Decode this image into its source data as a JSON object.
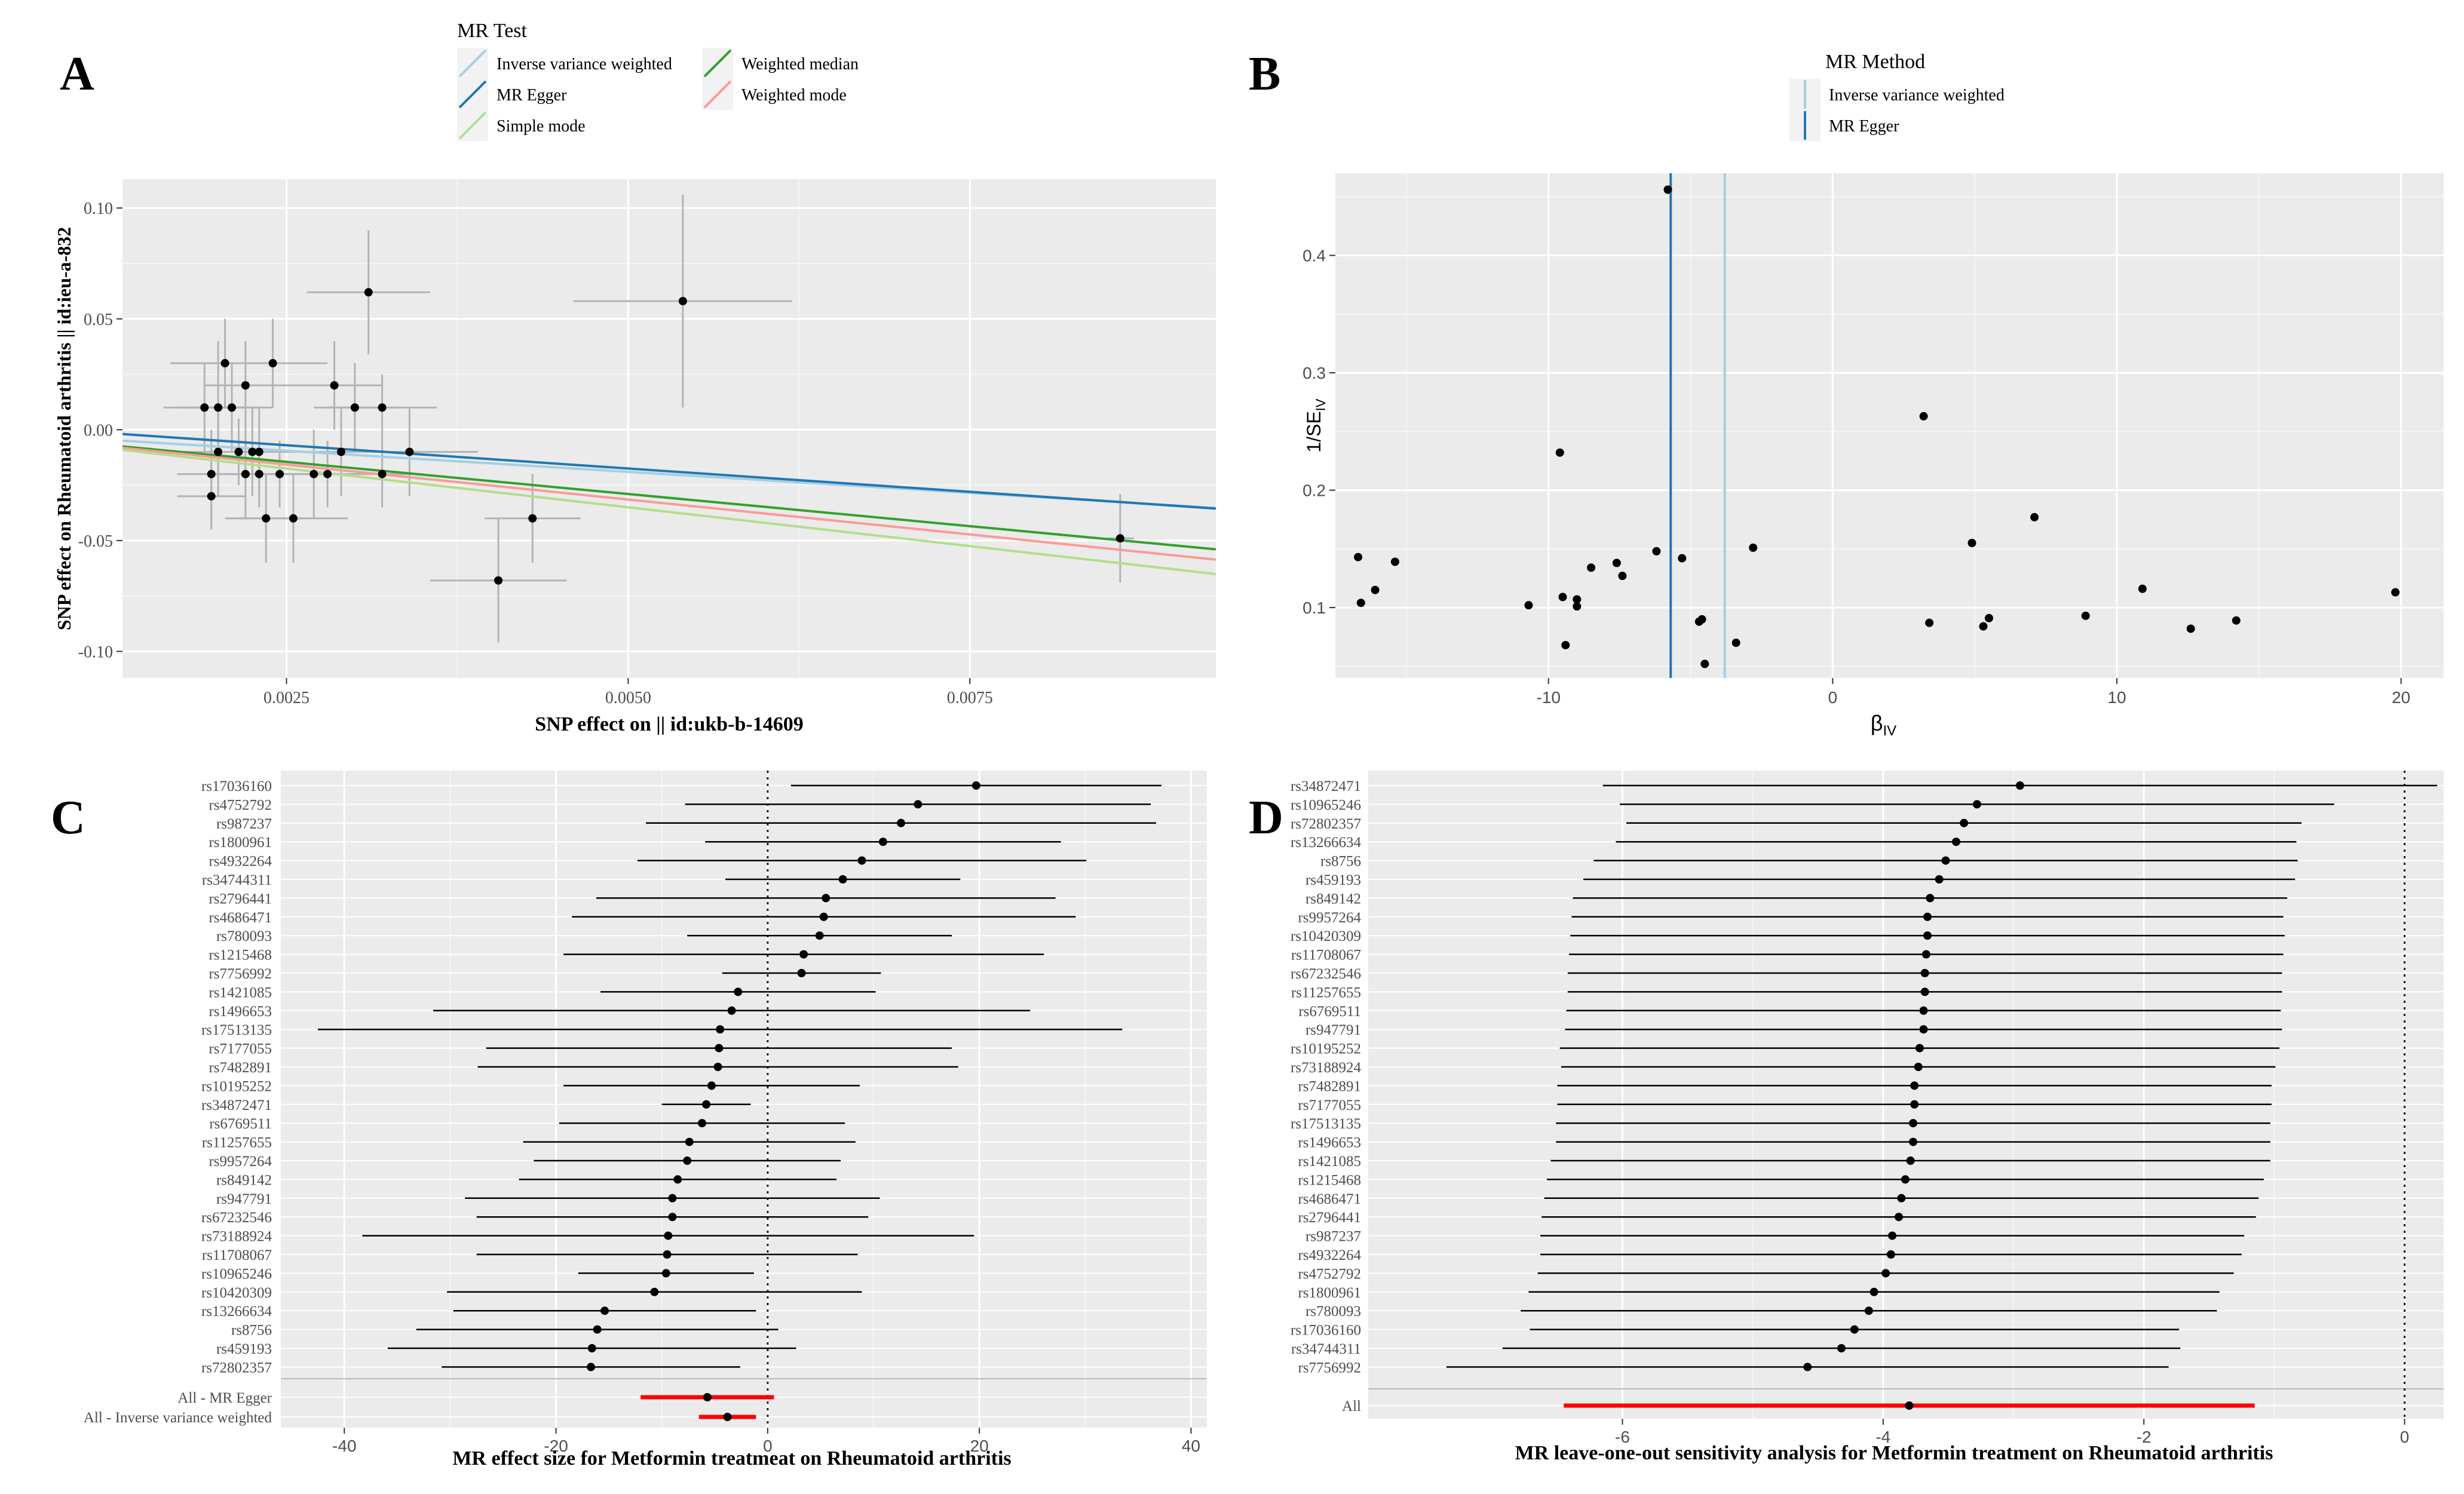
{
  "panel_letters": {
    "a": "A",
    "b": "B",
    "c": "C",
    "d": "D"
  },
  "chart_data": [
    {
      "panel": "A",
      "type": "scatter",
      "xlabel": "SNP effect on  || id:ukb-b-14609",
      "ylabel": "SNP effect on Rheumatoid arthritis || id:ieu-a-832",
      "xlim": [
        0.0013,
        0.0093
      ],
      "ylim": [
        -0.112,
        0.113
      ],
      "x_ticks": [
        0.0025,
        0.005,
        0.0075
      ],
      "x_tick_labels": [
        "0.0025",
        "0.0050",
        "0.0075"
      ],
      "y_ticks": [
        -0.1,
        -0.05,
        0.0,
        0.05,
        0.1
      ],
      "y_tick_labels": [
        "-0.10",
        "-0.05",
        "0.00",
        "0.05",
        "0.10"
      ],
      "grid": true,
      "legend": {
        "title": "MR Test",
        "placement": "top",
        "entries": [
          {
            "name": "Inverse variance weighted",
            "color": "#a6cee3"
          },
          {
            "name": "Weighted median",
            "color": "#33a02c"
          },
          {
            "name": "MR Egger",
            "color": "#1f78b4"
          },
          {
            "name": "Weighted mode",
            "color": "#fb9a99"
          },
          {
            "name": "Simple mode",
            "color": "#b2df8a"
          }
        ]
      },
      "lines": [
        {
          "name": "Inverse variance weighted",
          "color": "#a6cee3",
          "intercept": 0.0,
          "slope": -3.8
        },
        {
          "name": "MR Egger",
          "color": "#1f78b4",
          "intercept": 0.0035,
          "slope": -4.2
        },
        {
          "name": "Weighted median",
          "color": "#33a02c",
          "intercept": 0.0,
          "slope": -5.8
        },
        {
          "name": "Weighted mode",
          "color": "#fb9a99",
          "intercept": 0.0,
          "slope": -6.3
        },
        {
          "name": "Simple mode",
          "color": "#b2df8a",
          "intercept": 0.0,
          "slope": -7.0
        }
      ],
      "points": [
        {
          "x": 0.0019,
          "y": 0.01,
          "xse": 0.0003,
          "yse": 0.02
        },
        {
          "x": 0.00195,
          "y": -0.02,
          "xse": 0.00025,
          "yse": 0.02
        },
        {
          "x": 0.00195,
          "y": -0.03,
          "xse": 0.00025,
          "yse": 0.015
        },
        {
          "x": 0.002,
          "y": -0.01,
          "xse": 0.0003,
          "yse": 0.02
        },
        {
          "x": 0.002,
          "y": 0.01,
          "xse": 0.0003,
          "yse": 0.03
        },
        {
          "x": 0.00205,
          "y": 0.03,
          "xse": 0.0004,
          "yse": 0.02
        },
        {
          "x": 0.0021,
          "y": 0.01,
          "xse": 0.0003,
          "yse": 0.02
        },
        {
          "x": 0.00215,
          "y": -0.01,
          "xse": 0.0003,
          "yse": 0.015
        },
        {
          "x": 0.0022,
          "y": -0.02,
          "xse": 0.0004,
          "yse": 0.02
        },
        {
          "x": 0.0022,
          "y": 0.02,
          "xse": 0.0003,
          "yse": 0.02
        },
        {
          "x": 0.00225,
          "y": -0.01,
          "xse": 0.0003,
          "yse": 0.02
        },
        {
          "x": 0.0023,
          "y": -0.02,
          "xse": 0.0003,
          "yse": 0.015
        },
        {
          "x": 0.0023,
          "y": -0.01,
          "xse": 0.00035,
          "yse": 0.02
        },
        {
          "x": 0.00235,
          "y": -0.04,
          "xse": 0.0003,
          "yse": 0.02
        },
        {
          "x": 0.0024,
          "y": 0.03,
          "xse": 0.0004,
          "yse": 0.02
        },
        {
          "x": 0.00245,
          "y": -0.02,
          "xse": 0.0003,
          "yse": 0.015
        },
        {
          "x": 0.00255,
          "y": -0.04,
          "xse": 0.0004,
          "yse": 0.02
        },
        {
          "x": 0.0027,
          "y": -0.02,
          "xse": 0.0003,
          "yse": 0.02
        },
        {
          "x": 0.0028,
          "y": -0.02,
          "xse": 0.0003,
          "yse": 0.015
        },
        {
          "x": 0.00285,
          "y": 0.02,
          "xse": 0.00035,
          "yse": 0.02
        },
        {
          "x": 0.0029,
          "y": -0.01,
          "xse": 0.00035,
          "yse": 0.02
        },
        {
          "x": 0.003,
          "y": 0.01,
          "xse": 0.0003,
          "yse": 0.02
        },
        {
          "x": 0.0031,
          "y": 0.062,
          "xse": 0.00045,
          "yse": 0.028
        },
        {
          "x": 0.0032,
          "y": 0.01,
          "xse": 0.0004,
          "yse": 0.015
        },
        {
          "x": 0.0032,
          "y": -0.02,
          "xse": 0.0003,
          "yse": 0.015
        },
        {
          "x": 0.0034,
          "y": -0.01,
          "xse": 0.0005,
          "yse": 0.02
        },
        {
          "x": 0.00405,
          "y": -0.068,
          "xse": 0.0005,
          "yse": 0.028
        },
        {
          "x": 0.0043,
          "y": -0.04,
          "xse": 0.00035,
          "yse": 0.02
        },
        {
          "x": 0.0054,
          "y": 0.058,
          "xse": 0.0008,
          "yse": 0.048
        },
        {
          "x": 0.0086,
          "y": -0.049,
          "xse": 0.0001,
          "yse": 0.02
        }
      ]
    },
    {
      "panel": "B",
      "type": "scatter",
      "xlabel": "βIV",
      "ylabel": "1/SEIV",
      "xlabel_main": "β",
      "xlabel_sub": "IV",
      "ylabel_main": "1/SE",
      "ylabel_sub": "IV",
      "xlim": [
        -17.5,
        21.5
      ],
      "ylim": [
        0.04,
        0.47
      ],
      "x_ticks": [
        -10,
        0,
        10,
        20
      ],
      "x_tick_labels": [
        "-10",
        "0",
        "10",
        "20"
      ],
      "y_ticks": [
        0.1,
        0.2,
        0.3,
        0.4
      ],
      "y_tick_labels": [
        "0.1",
        "0.2",
        "0.3",
        "0.4"
      ],
      "grid": true,
      "legend": {
        "title": "MR Method",
        "placement": "top",
        "entries": [
          {
            "name": "Inverse variance weighted",
            "color": "#a6cee3"
          },
          {
            "name": "MR Egger",
            "color": "#1f78b4"
          }
        ]
      },
      "vlines": [
        {
          "name": "MR Egger",
          "color": "#1f78b4",
          "x": -5.7
        },
        {
          "name": "Inverse variance weighted",
          "color": "#a6cee3",
          "x": -3.8
        }
      ],
      "points": [
        {
          "x": -16.7,
          "y": 0.143
        },
        {
          "x": -16.6,
          "y": 0.104
        },
        {
          "x": -16.1,
          "y": 0.115
        },
        {
          "x": -15.4,
          "y": 0.139
        },
        {
          "x": -10.7,
          "y": 0.102
        },
        {
          "x": -9.6,
          "y": 0.232
        },
        {
          "x": -9.5,
          "y": 0.109
        },
        {
          "x": -9.4,
          "y": 0.068
        },
        {
          "x": -9.0,
          "y": 0.101
        },
        {
          "x": -9.0,
          "y": 0.107
        },
        {
          "x": -8.5,
          "y": 0.134
        },
        {
          "x": -7.6,
          "y": 0.138
        },
        {
          "x": -7.4,
          "y": 0.127
        },
        {
          "x": -6.2,
          "y": 0.148
        },
        {
          "x": -5.8,
          "y": 0.456
        },
        {
          "x": -5.3,
          "y": 0.142
        },
        {
          "x": -4.7,
          "y": 0.088
        },
        {
          "x": -4.6,
          "y": 0.09
        },
        {
          "x": -4.5,
          "y": 0.052
        },
        {
          "x": -3.4,
          "y": 0.07
        },
        {
          "x": -2.8,
          "y": 0.151
        },
        {
          "x": 3.2,
          "y": 0.263
        },
        {
          "x": 3.4,
          "y": 0.087
        },
        {
          "x": 4.9,
          "y": 0.155
        },
        {
          "x": 5.3,
          "y": 0.084
        },
        {
          "x": 5.5,
          "y": 0.091
        },
        {
          "x": 7.1,
          "y": 0.177
        },
        {
          "x": 8.9,
          "y": 0.093
        },
        {
          "x": 10.9,
          "y": 0.116
        },
        {
          "x": 12.6,
          "y": 0.082
        },
        {
          "x": 14.2,
          "y": 0.089
        },
        {
          "x": 19.8,
          "y": 0.113
        }
      ]
    },
    {
      "panel": "C",
      "type": "forest",
      "xlabel": "MR effect size for Metformin treatmeat on    Rheumatoid arthritis",
      "xlim": [
        -46,
        41.5
      ],
      "x_ticks": [
        -40,
        -20,
        0,
        20,
        40
      ],
      "x_tick_labels": [
        "-40",
        "-20",
        "0",
        "20",
        "40"
      ],
      "grid": true,
      "refline": 0,
      "rows": [
        {
          "label": "rs17036160",
          "b": 19.7,
          "lo": 2.2,
          "hi": 37.2
        },
        {
          "label": "rs4752792",
          "b": 14.2,
          "lo": -7.8,
          "hi": 36.2
        },
        {
          "label": "rs987237",
          "b": 12.6,
          "lo": -11.5,
          "hi": 36.7
        },
        {
          "label": "rs1800961",
          "b": 10.9,
          "lo": -5.9,
          "hi": 27.7
        },
        {
          "label": "rs4932264",
          "b": 8.9,
          "lo": -12.3,
          "hi": 30.1
        },
        {
          "label": "rs34744311",
          "b": 7.1,
          "lo": -4.0,
          "hi": 18.2
        },
        {
          "label": "rs2796441",
          "b": 5.5,
          "lo": -16.2,
          "hi": 27.2
        },
        {
          "label": "rs4686471",
          "b": 5.3,
          "lo": -18.5,
          "hi": 29.1
        },
        {
          "label": "rs780093",
          "b": 4.9,
          "lo": -7.6,
          "hi": 17.4
        },
        {
          "label": "rs1215468",
          "b": 3.4,
          "lo": -19.3,
          "hi": 26.1
        },
        {
          "label": "rs7756992",
          "b": 3.2,
          "lo": -4.3,
          "hi": 10.7
        },
        {
          "label": "rs1421085",
          "b": -2.8,
          "lo": -15.8,
          "hi": 10.2
        },
        {
          "label": "rs1496653",
          "b": -3.4,
          "lo": -31.6,
          "hi": 24.8
        },
        {
          "label": "rs17513135",
          "b": -4.5,
          "lo": -42.5,
          "hi": 33.5
        },
        {
          "label": "rs7177055",
          "b": -4.6,
          "lo": -26.6,
          "hi": 17.4
        },
        {
          "label": "rs7482891",
          "b": -4.7,
          "lo": -27.4,
          "hi": 18.0
        },
        {
          "label": "rs10195252",
          "b": -5.3,
          "lo": -19.3,
          "hi": 8.7
        },
        {
          "label": "rs34872471",
          "b": -5.8,
          "lo": -10.0,
          "hi": -1.6
        },
        {
          "label": "rs6769511",
          "b": -6.2,
          "lo": -19.7,
          "hi": 7.3
        },
        {
          "label": "rs11257655",
          "b": -7.4,
          "lo": -23.1,
          "hi": 8.3
        },
        {
          "label": "rs9957264",
          "b": -7.6,
          "lo": -22.1,
          "hi": 6.9
        },
        {
          "label": "rs849142",
          "b": -8.5,
          "lo": -23.5,
          "hi": 6.5
        },
        {
          "label": "rs947791",
          "b": -9.0,
          "lo": -28.6,
          "hi": 10.6
        },
        {
          "label": "rs67232546",
          "b": -9.0,
          "lo": -27.5,
          "hi": 9.5
        },
        {
          "label": "rs73188924",
          "b": -9.4,
          "lo": -38.3,
          "hi": 19.5
        },
        {
          "label": "rs11708067",
          "b": -9.5,
          "lo": -27.5,
          "hi": 8.5
        },
        {
          "label": "rs10965246",
          "b": -9.6,
          "lo": -17.9,
          "hi": -1.3
        },
        {
          "label": "rs10420309",
          "b": -10.7,
          "lo": -30.3,
          "hi": 8.9
        },
        {
          "label": "rs13266634",
          "b": -15.4,
          "lo": -29.7,
          "hi": -1.1
        },
        {
          "label": "rs8756",
          "b": -16.1,
          "lo": -33.2,
          "hi": 1.0
        },
        {
          "label": "rs459193",
          "b": -16.6,
          "lo": -35.9,
          "hi": 2.7
        },
        {
          "label": "rs72802357",
          "b": -16.7,
          "lo": -30.8,
          "hi": -2.6
        }
      ],
      "summary_rows": [
        {
          "label": "All - MR Egger",
          "b": -5.7,
          "lo": -12.0,
          "hi": 0.6
        },
        {
          "label": "All - Inverse variance weighted",
          "b": -3.8,
          "lo": -6.5,
          "hi": -1.1
        }
      ]
    },
    {
      "panel": "D",
      "type": "forest",
      "xlabel": "MR leave-one-out sensitivity analysis for Metformin treatment on Rheumatoid arthritis",
      "xlim": [
        -7.95,
        0.3
      ],
      "x_ticks": [
        -6,
        -4,
        -2,
        0
      ],
      "x_tick_labels": [
        "-6",
        "-4",
        "-2",
        "0"
      ],
      "grid": true,
      "refline": 0,
      "rows": [
        {
          "label": "rs34872471",
          "b": -2.95,
          "lo": -6.15,
          "hi": 0.25
        },
        {
          "label": "rs10965246",
          "b": -3.28,
          "lo": -6.02,
          "hi": -0.54
        },
        {
          "label": "rs72802357",
          "b": -3.38,
          "lo": -5.97,
          "hi": -0.79
        },
        {
          "label": "rs13266634",
          "b": -3.44,
          "lo": -6.05,
          "hi": -0.83
        },
        {
          "label": "rs8756",
          "b": -3.52,
          "lo": -6.22,
          "hi": -0.82
        },
        {
          "label": "rs459193",
          "b": -3.57,
          "lo": -6.3,
          "hi": -0.84
        },
        {
          "label": "rs849142",
          "b": -3.64,
          "lo": -6.38,
          "hi": -0.9
        },
        {
          "label": "rs9957264",
          "b": -3.66,
          "lo": -6.39,
          "hi": -0.93
        },
        {
          "label": "rs10420309",
          "b": -3.66,
          "lo": -6.4,
          "hi": -0.92
        },
        {
          "label": "rs11708067",
          "b": -3.67,
          "lo": -6.41,
          "hi": -0.93
        },
        {
          "label": "rs67232546",
          "b": -3.68,
          "lo": -6.42,
          "hi": -0.94
        },
        {
          "label": "rs11257655",
          "b": -3.68,
          "lo": -6.42,
          "hi": -0.94
        },
        {
          "label": "rs6769511",
          "b": -3.69,
          "lo": -6.43,
          "hi": -0.95
        },
        {
          "label": "rs947791",
          "b": -3.69,
          "lo": -6.44,
          "hi": -0.94
        },
        {
          "label": "rs10195252",
          "b": -3.72,
          "lo": -6.48,
          "hi": -0.96
        },
        {
          "label": "rs73188924",
          "b": -3.73,
          "lo": -6.47,
          "hi": -0.99
        },
        {
          "label": "rs7482891",
          "b": -3.76,
          "lo": -6.5,
          "hi": -1.02
        },
        {
          "label": "rs7177055",
          "b": -3.76,
          "lo": -6.5,
          "hi": -1.02
        },
        {
          "label": "rs17513135",
          "b": -3.77,
          "lo": -6.51,
          "hi": -1.03
        },
        {
          "label": "rs1496653",
          "b": -3.77,
          "lo": -6.51,
          "hi": -1.03
        },
        {
          "label": "rs1421085",
          "b": -3.79,
          "lo": -6.55,
          "hi": -1.03
        },
        {
          "label": "rs1215468",
          "b": -3.83,
          "lo": -6.58,
          "hi": -1.08
        },
        {
          "label": "rs4686471",
          "b": -3.86,
          "lo": -6.6,
          "hi": -1.12
        },
        {
          "label": "rs2796441",
          "b": -3.88,
          "lo": -6.62,
          "hi": -1.14
        },
        {
          "label": "rs987237",
          "b": -3.93,
          "lo": -6.63,
          "hi": -1.23
        },
        {
          "label": "rs4932264",
          "b": -3.94,
          "lo": -6.63,
          "hi": -1.25
        },
        {
          "label": "rs4752792",
          "b": -3.98,
          "lo": -6.65,
          "hi": -1.31
        },
        {
          "label": "rs1800961",
          "b": -4.07,
          "lo": -6.72,
          "hi": -1.42
        },
        {
          "label": "rs780093",
          "b": -4.11,
          "lo": -6.78,
          "hi": -1.44
        },
        {
          "label": "rs17036160",
          "b": -4.22,
          "lo": -6.71,
          "hi": -1.73
        },
        {
          "label": "rs34744311",
          "b": -4.32,
          "lo": -6.92,
          "hi": -1.72
        },
        {
          "label": "rs7756992",
          "b": -4.58,
          "lo": -7.35,
          "hi": -1.81
        }
      ],
      "summary_rows": [
        {
          "label": "All",
          "b": -3.8,
          "lo": -6.45,
          "hi": -1.15
        }
      ]
    }
  ]
}
